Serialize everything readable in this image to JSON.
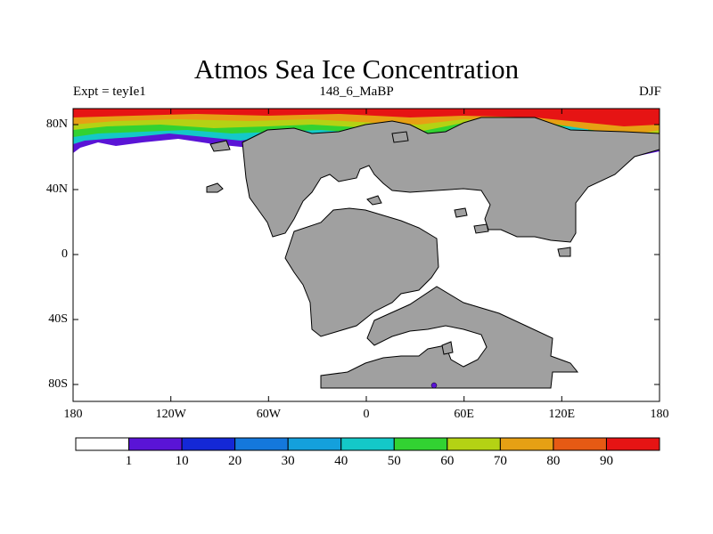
{
  "title": "Atmos Sea Ice Concentration",
  "subtitle_left": "Expt = teyIe1",
  "subtitle_center": "148_6_MaBP",
  "subtitle_right": "DJF",
  "y_ticks": [
    "80N",
    "40N",
    "0",
    "40S",
    "80S"
  ],
  "x_ticks": [
    "180",
    "120W",
    "60W",
    "0",
    "60E",
    "120E",
    "180"
  ],
  "colorbar": {
    "labels": [
      "1",
      "10",
      "20",
      "30",
      "40",
      "50",
      "60",
      "70",
      "80",
      "90"
    ],
    "colors": [
      "#ffffff",
      "#5a14d6",
      "#1428d6",
      "#1478dc",
      "#14a0dc",
      "#14c8c8",
      "#32d232",
      "#b4d214",
      "#e6a014",
      "#e65a14",
      "#e61414"
    ]
  },
  "colors": {
    "land": "#a0a0a0",
    "ocean": "#ffffff"
  }
}
